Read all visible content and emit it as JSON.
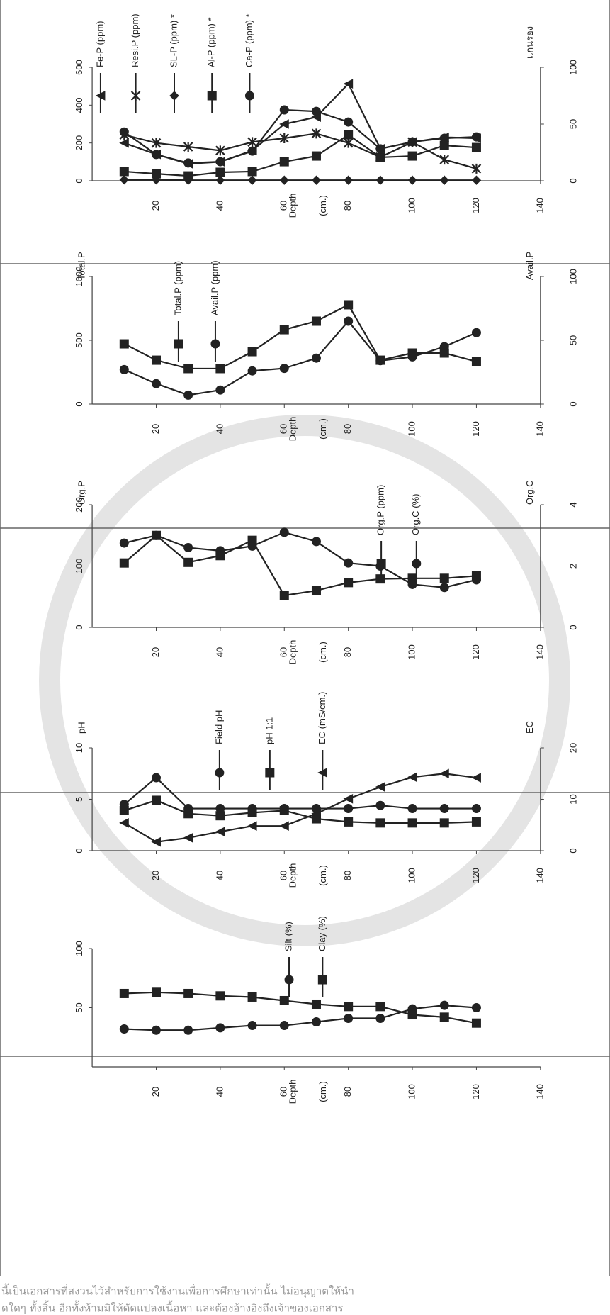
{
  "chart_data": [
    {
      "type": "line",
      "xlabel": "Depth",
      "xlabel_unit": "(cm.)",
      "y2label": "แกนรอง",
      "x": [
        10,
        20,
        30,
        40,
        50,
        60,
        70,
        80,
        90,
        100,
        110,
        120
      ],
      "xlim": [
        0,
        140
      ],
      "xticks": [
        20,
        40,
        60,
        80,
        100,
        120,
        140
      ],
      "ylim": [
        0,
        600
      ],
      "yticks": [
        0,
        200,
        400,
        600
      ],
      "y2lim": [
        0,
        100
      ],
      "y2ticks": [
        0,
        50,
        100
      ],
      "series": [
        {
          "name": "Fe-P (ppm)",
          "marker": "triangle",
          "color": "#222222",
          "values": [
            200,
            140,
            90,
            100,
            160,
            300,
            337,
            513,
            170,
            205,
            230,
            225
          ]
        },
        {
          "name": "Resi.P (ppm)",
          "marker": "x",
          "color": "#222222",
          "values": [
            243,
            200,
            180,
            160,
            205,
            225,
            250,
            200,
            125,
            205,
            112,
            64
          ]
        },
        {
          "name": "SL-P (ppm) *",
          "marker": "diamond",
          "color": "#222222",
          "values": [
            5,
            5,
            3,
            3,
            3,
            3,
            3,
            3,
            3,
            3,
            3,
            3
          ]
        },
        {
          "name": "Al-P (ppm) *",
          "marker": "square",
          "color": "#222222",
          "values": [
            49,
            37,
            26,
            45,
            49,
            101,
            131,
            243,
            124,
            131,
            187,
            176
          ]
        },
        {
          "name": "Ca-P (ppm) *",
          "marker": "circle",
          "color": "#222222",
          "values": [
            258,
            139,
            94,
            101,
            157,
            375,
            367,
            311,
            169,
            206,
            225,
            232
          ]
        }
      ]
    },
    {
      "type": "line",
      "xlabel": "Depth",
      "xlabel_unit": "(cm.)",
      "ylabel": "Total.P",
      "y2label": "Avail.P",
      "x": [
        10,
        20,
        30,
        40,
        50,
        60,
        70,
        80,
        90,
        100,
        110,
        120
      ],
      "xlim": [
        0,
        140
      ],
      "xticks": [
        20,
        40,
        60,
        80,
        100,
        120,
        140
      ],
      "ylim": [
        0,
        1000
      ],
      "yticks": [
        0,
        500,
        1000
      ],
      "y2lim": [
        0,
        100
      ],
      "y2ticks": [
        0,
        50,
        100
      ],
      "series": [
        {
          "name": "Total.P (ppm)",
          "marker": "square",
          "color": "#222222",
          "values": [
            472,
            344,
            278,
            278,
            411,
            583,
            650,
            778,
            344,
            400,
            400,
            333
          ]
        },
        {
          "name": "Avail.P (ppm)",
          "marker": "circle",
          "color": "#222222",
          "axis": "y2",
          "values": [
            27,
            16,
            7,
            11,
            26,
            28,
            36,
            65,
            34,
            37,
            45,
            56
          ]
        }
      ]
    },
    {
      "type": "line",
      "xlabel": "Depth",
      "xlabel_unit": "(cm.)",
      "ylabel": "Org.P",
      "y2label": "Org.C",
      "x": [
        10,
        20,
        30,
        40,
        50,
        60,
        70,
        80,
        90,
        100,
        110,
        120
      ],
      "xlim": [
        0,
        140
      ],
      "xticks": [
        20,
        40,
        60,
        80,
        100,
        120,
        140
      ],
      "ylim": [
        0,
        200
      ],
      "yticks": [
        0,
        100,
        200
      ],
      "y2lim": [
        0,
        4
      ],
      "y2ticks": [
        0,
        2,
        4
      ],
      "series": [
        {
          "name": "Org.P (ppm)",
          "marker": "square",
          "color": "#222222",
          "values": [
            105,
            150,
            106,
            117,
            142,
            52,
            60,
            73,
            79,
            80,
            80,
            84
          ]
        },
        {
          "name": "Org.C (%)",
          "marker": "circle",
          "color": "#222222",
          "axis": "y2",
          "values": [
            2.75,
            3.0,
            2.6,
            2.5,
            2.65,
            3.1,
            2.8,
            2.1,
            2.0,
            1.4,
            1.3,
            1.55
          ]
        }
      ]
    },
    {
      "type": "line",
      "xlabel": "Depth",
      "xlabel_unit": "(cm.)",
      "ylabel": "pH",
      "y2label": "EC",
      "x": [
        10,
        20,
        30,
        40,
        50,
        60,
        70,
        80,
        90,
        100,
        110,
        120
      ],
      "xlim": [
        0,
        140
      ],
      "xticks": [
        20,
        40,
        60,
        80,
        100,
        120,
        140
      ],
      "ylim": [
        0,
        10
      ],
      "yticks": [
        0,
        5,
        10
      ],
      "y2lim": [
        0,
        20
      ],
      "y2ticks": [
        0,
        10,
        20
      ],
      "series": [
        {
          "name": "Field pH",
          "marker": "circle",
          "color": "#222222",
          "values": [
            4.5,
            7.1,
            4.1,
            4.1,
            4.1,
            4.1,
            4.1,
            4.1,
            4.4,
            4.1,
            4.1,
            4.1
          ]
        },
        {
          "name": "pH 1:1",
          "marker": "square",
          "color": "#222222",
          "values": [
            3.9,
            4.9,
            3.6,
            3.4,
            3.7,
            3.9,
            3.1,
            2.8,
            2.7,
            2.7,
            2.7,
            2.8
          ]
        },
        {
          "name": "EC (mS/cm.)",
          "marker": "triangle",
          "color": "#222222",
          "axis": "y2",
          "values": [
            5.4,
            1.7,
            2.5,
            3.7,
            4.8,
            4.8,
            7.2,
            10.1,
            12.4,
            14.3,
            15.0,
            14.2
          ]
        }
      ]
    },
    {
      "type": "line",
      "xlabel": "Depth",
      "xlabel_unit": "(cm.)",
      "x": [
        10,
        20,
        30,
        40,
        50,
        60,
        70,
        80,
        90,
        100,
        110,
        120
      ],
      "xlim": [
        0,
        140
      ],
      "xticks": [
        20,
        40,
        60,
        80,
        100,
        120,
        140
      ],
      "ylim": [
        0,
        100
      ],
      "yticks": [
        50,
        100
      ],
      "series": [
        {
          "name": "Silt (%)",
          "marker": "circle",
          "color": "#222222",
          "values": [
            32,
            31,
            31,
            33,
            35,
            35,
            38,
            41,
            41,
            49,
            52,
            50
          ]
        },
        {
          "name": "Clay (%)",
          "marker": "square",
          "color": "#222222",
          "values": [
            62,
            63,
            62,
            60,
            59,
            56,
            53,
            51,
            51,
            44,
            42,
            37
          ]
        }
      ]
    }
  ],
  "watermark": [
    "นี้เป็นเอกสารที่สงวนไว้สำหรับการใช้งานเพื่อการศึกษาเท่านั้น ไม่อนุญาตให้นำ",
    "ดใดๆ ทั้งสิ้น อีกทั้งห้ามมิให้ดัดแปลงเนื้อหา และต้องอ้างอิงถึงเจ้าของเอกสาร"
  ]
}
